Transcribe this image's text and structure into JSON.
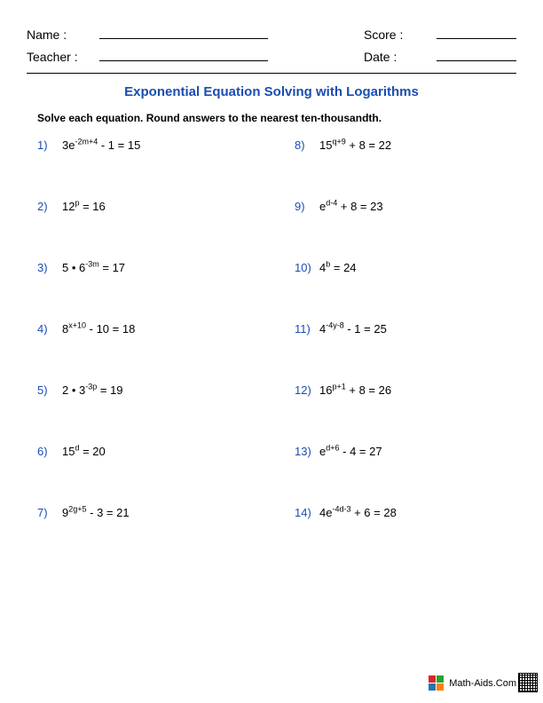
{
  "header": {
    "name_label": "Name :",
    "teacher_label": "Teacher :",
    "score_label": "Score :",
    "date_label": "Date :"
  },
  "title": {
    "text": "Exponential Equation Solving with Logarithms",
    "color": "#1a4db3"
  },
  "instruction": "Solve each equation. Round answers to the nearest ten-thousandth.",
  "problem_number_color": "#1a4db3",
  "text_color": "#000000",
  "columns": [
    [
      {
        "num": "1)",
        "base_pre": "3e",
        "exp": "-2m+4",
        "tail": " - 1 = 15"
      },
      {
        "num": "2)",
        "base_pre": "12",
        "exp": "p",
        "tail": " = 16"
      },
      {
        "num": "3)",
        "base_pre": "5 • 6",
        "exp": "-3m",
        "tail": " = 17"
      },
      {
        "num": "4)",
        "base_pre": "8",
        "exp": "x+10",
        "tail": " - 10 = 18"
      },
      {
        "num": "5)",
        "base_pre": "2 • 3",
        "exp": "-3p",
        "tail": " = 19"
      },
      {
        "num": "6)",
        "base_pre": "15",
        "exp": "d",
        "tail": " = 20"
      },
      {
        "num": "7)",
        "base_pre": "9",
        "exp": "2g+5",
        "tail": " - 3 = 21"
      }
    ],
    [
      {
        "num": "8)",
        "base_pre": "15",
        "exp": "q+9",
        "tail": " + 8 = 22"
      },
      {
        "num": "9)",
        "base_pre": "e",
        "exp": "d-4",
        "tail": " + 8 = 23"
      },
      {
        "num": "10)",
        "base_pre": "4",
        "exp": "b",
        "tail": " = 24"
      },
      {
        "num": "11)",
        "base_pre": "4",
        "exp": "-4y-8",
        "tail": " - 1 = 25"
      },
      {
        "num": "12)",
        "base_pre": "16",
        "exp": "p+1",
        "tail": " + 8 = 26"
      },
      {
        "num": "13)",
        "base_pre": "e",
        "exp": "d+6",
        "tail": " - 4 = 27"
      },
      {
        "num": "14)",
        "base_pre": "4e",
        "exp": "-4d-3",
        "tail": " + 6 = 28"
      }
    ]
  ],
  "footer": {
    "text": "Math-Aids.Com"
  }
}
